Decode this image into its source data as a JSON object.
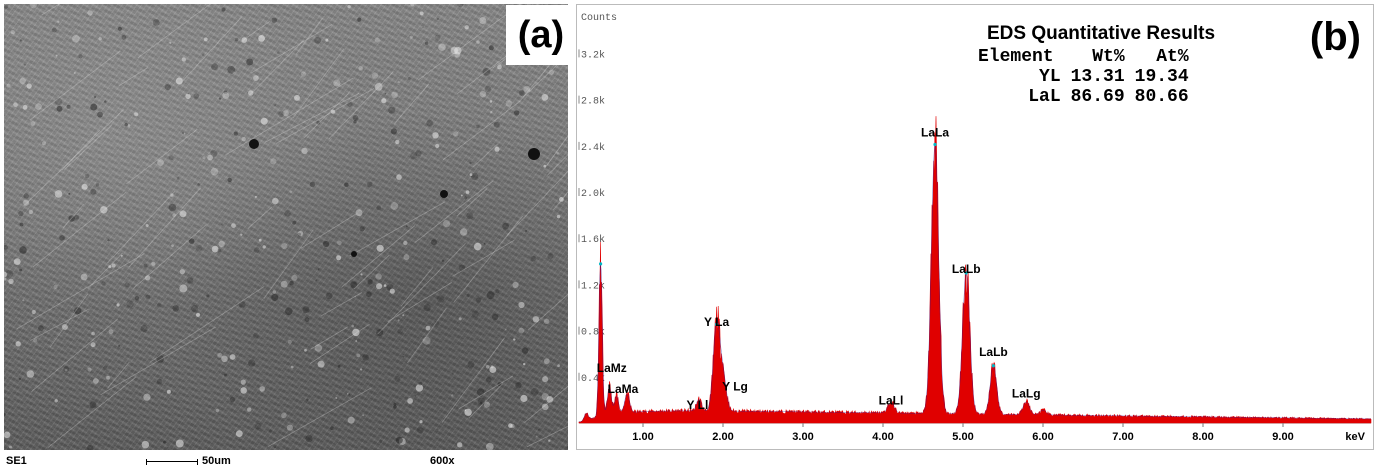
{
  "panel_a": {
    "label": "(a)",
    "footer": {
      "mode": "SE1",
      "scale": "50um",
      "magnification": "600x"
    },
    "icon": "sem-micrograph"
  },
  "panel_b": {
    "label": "(b)",
    "results": {
      "title": "EDS Quantitative Results",
      "headers": [
        "Element",
        "Wt%",
        "At%"
      ],
      "rows": [
        {
          "element": "YL",
          "wt": "13.31",
          "at": "19.34"
        },
        {
          "element": "LaL",
          "wt": "86.69",
          "at": "80.66"
        }
      ]
    }
  },
  "chart_data": {
    "type": "area",
    "ylabel": "Counts",
    "xlabel": "keV",
    "xlim": [
      0.2,
      10.1
    ],
    "ylim": [
      0,
      3.55
    ],
    "yticks": [
      {
        "v": 0.4,
        "label": "0.4k"
      },
      {
        "v": 0.8,
        "label": "0.8k"
      },
      {
        "v": 1.2,
        "label": "1.2k"
      },
      {
        "v": 1.6,
        "label": "1.6k"
      },
      {
        "v": 2.0,
        "label": "2.0k"
      },
      {
        "v": 2.4,
        "label": "2.4k"
      },
      {
        "v": 2.8,
        "label": "2.8k"
      },
      {
        "v": 3.2,
        "label": "3.2k"
      }
    ],
    "xticks": [
      {
        "v": 1.0,
        "label": "1.00"
      },
      {
        "v": 2.0,
        "label": "2.00"
      },
      {
        "v": 3.0,
        "label": "3.00"
      },
      {
        "v": 4.0,
        "label": "4.00"
      },
      {
        "v": 5.0,
        "label": "5.00"
      },
      {
        "v": 6.0,
        "label": "6.00"
      },
      {
        "v": 7.0,
        "label": "7.00"
      },
      {
        "v": 8.0,
        "label": "8.00"
      },
      {
        "v": 9.0,
        "label": "9.00"
      }
    ],
    "fill_color": "#e00000",
    "outline_color": "#1a1aa0",
    "peaks": [
      {
        "x": 0.29,
        "h": 0.06,
        "w": 0.025
      },
      {
        "x": 0.47,
        "h": 1.32,
        "w": 0.02
      },
      {
        "x": 0.58,
        "h": 0.24,
        "w": 0.025
      },
      {
        "x": 0.67,
        "h": 0.15,
        "w": 0.025
      },
      {
        "x": 0.8,
        "h": 0.16,
        "w": 0.03
      },
      {
        "x": 1.7,
        "h": 0.1,
        "w": 0.03
      },
      {
        "x": 1.92,
        "h": 0.75,
        "w": 0.04
      },
      {
        "x": 2.0,
        "h": 0.3,
        "w": 0.04
      },
      {
        "x": 4.1,
        "h": 0.09,
        "w": 0.04
      },
      {
        "x": 4.65,
        "h": 2.33,
        "w": 0.045
      },
      {
        "x": 5.04,
        "h": 1.22,
        "w": 0.045
      },
      {
        "x": 5.38,
        "h": 0.42,
        "w": 0.04
      },
      {
        "x": 5.79,
        "h": 0.11,
        "w": 0.04
      },
      {
        "x": 6.0,
        "h": 0.04,
        "w": 0.04
      }
    ],
    "annotations": [
      {
        "x": 4.65,
        "y": 2.48,
        "text": "LaLa"
      },
      {
        "x": 5.04,
        "y": 1.3,
        "text": "LaLb"
      },
      {
        "x": 5.38,
        "y": 0.58,
        "text": "LaLb"
      },
      {
        "x": 5.79,
        "y": 0.22,
        "text": "LaLg"
      },
      {
        "x": 4.1,
        "y": 0.16,
        "text": "LaLl"
      },
      {
        "x": 1.92,
        "y": 0.84,
        "text": "Y La"
      },
      {
        "x": 2.15,
        "y": 0.28,
        "text": "Y Lg"
      },
      {
        "x": 1.68,
        "y": 0.12,
        "text": "Y Ll"
      },
      {
        "x": 0.61,
        "y": 0.44,
        "text": "LaMz"
      },
      {
        "x": 0.75,
        "y": 0.26,
        "text": "LaMa"
      }
    ]
  }
}
